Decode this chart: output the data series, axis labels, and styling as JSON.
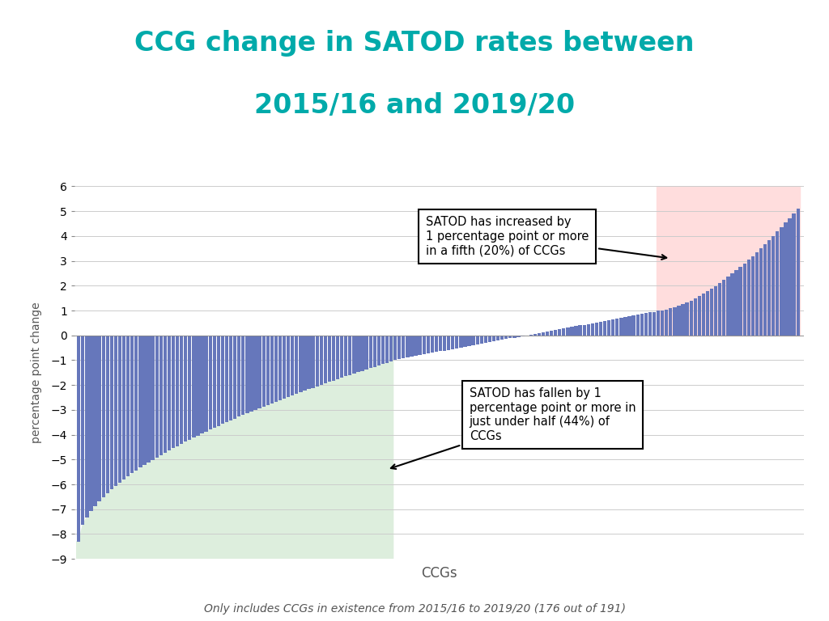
{
  "title_line1": "CCG change in SATOD rates between",
  "title_line2": "2015/16 and 2019/20",
  "title_color": "#00AAAA",
  "xlabel": "CCGs",
  "ylabel": "percentage point change",
  "footnote": "Only includes CCGs in existence from 2015/16 to 2019/20 (176 out of 191)",
  "n_ccgs": 176,
  "ylim_min": -9,
  "ylim_max": 6,
  "bar_color": "#6677BB",
  "green_bg_color": "#DDEEDD",
  "red_bg_color": "#FFDDDD",
  "n_fallen": 77,
  "n_risen": 35,
  "annotation_risen": "SATOD has increased by\n1 percentage point or more\nin a fifth (20%) of CCGs",
  "annotation_fallen": "SATOD has fallen by 1\npercentage point or more in\njust under half (44%) of\nCCGs"
}
